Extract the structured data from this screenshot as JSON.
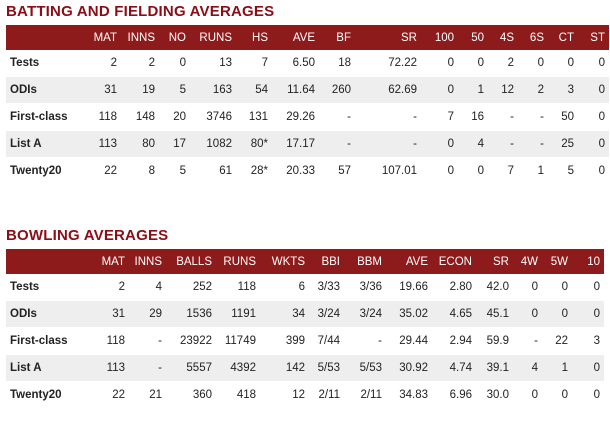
{
  "batting": {
    "title": "BATTING AND FIELDING AVERAGES",
    "headers": [
      "",
      "MAT",
      "INNS",
      "NO",
      "RUNS",
      "HS",
      "AVE",
      "BF",
      "SR",
      "100",
      "50",
      "4S",
      "6S",
      "CT",
      "ST"
    ],
    "rows": [
      [
        "Tests",
        "2",
        "2",
        "0",
        "13",
        "7",
        "6.50",
        "18",
        "72.22",
        "0",
        "0",
        "2",
        "0",
        "0",
        "0"
      ],
      [
        "ODIs",
        "31",
        "19",
        "5",
        "163",
        "54",
        "11.64",
        "260",
        "62.69",
        "0",
        "1",
        "12",
        "2",
        "3",
        "0"
      ],
      [
        "First-class",
        "118",
        "148",
        "20",
        "3746",
        "131",
        "29.26",
        "-",
        "-",
        "7",
        "16",
        "-",
        "-",
        "50",
        "0"
      ],
      [
        "List A",
        "113",
        "80",
        "17",
        "1082",
        "80*",
        "17.17",
        "-",
        "-",
        "0",
        "4",
        "-",
        "-",
        "25",
        "0"
      ],
      [
        "Twenty20",
        "22",
        "8",
        "5",
        "61",
        "28*",
        "20.33",
        "57",
        "107.01",
        "0",
        "0",
        "7",
        "1",
        "5",
        "0"
      ]
    ]
  },
  "bowling": {
    "title": "BOWLING AVERAGES",
    "headers": [
      "",
      "MAT",
      "INNS",
      "BALLS",
      "RUNS",
      "WKTS",
      "BBI",
      "BBM",
      "AVE",
      "ECON",
      "SR",
      "4W",
      "5W",
      "10"
    ],
    "rows": [
      [
        "Tests",
        "2",
        "4",
        "252",
        "118",
        "6",
        "3/33",
        "3/36",
        "19.66",
        "2.80",
        "42.0",
        "0",
        "0",
        "0"
      ],
      [
        "ODIs",
        "31",
        "29",
        "1536",
        "1191",
        "34",
        "3/24",
        "3/24",
        "35.02",
        "4.65",
        "45.1",
        "0",
        "0",
        "0"
      ],
      [
        "First-class",
        "118",
        "-",
        "23922",
        "11749",
        "399",
        "7/44",
        "-",
        "29.44",
        "2.94",
        "59.9",
        "-",
        "22",
        "3"
      ],
      [
        "List A",
        "113",
        "-",
        "5557",
        "4392",
        "142",
        "5/53",
        "5/53",
        "30.92",
        "4.74",
        "39.1",
        "4",
        "1",
        "0"
      ],
      [
        "Twenty20",
        "22",
        "21",
        "360",
        "418",
        "12",
        "2/11",
        "2/11",
        "34.83",
        "6.96",
        "30.0",
        "0",
        "0",
        "0"
      ]
    ]
  },
  "colors": {
    "header_bg": "#8e1b1b",
    "title": "#8b0d16",
    "stripe": "#eeeeee"
  }
}
